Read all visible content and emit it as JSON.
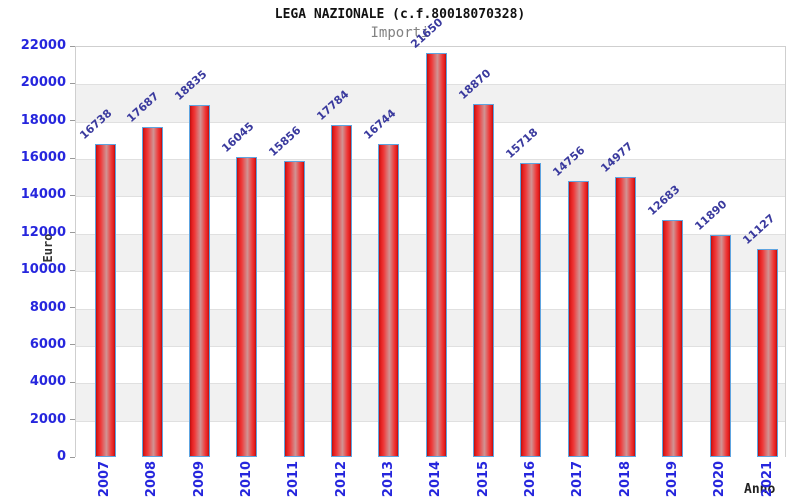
{
  "chart_data": {
    "type": "bar",
    "title": "LEGA NAZIONALE (c.f.80018070328)",
    "subtitle": "Importi",
    "xlabel": "Anno",
    "ylabel": "Euro",
    "categories": [
      "2007",
      "2008",
      "2009",
      "2010",
      "2011",
      "2012",
      "2013",
      "2014",
      "2015",
      "2016",
      "2017",
      "2018",
      "2019",
      "2020",
      "2021"
    ],
    "values": [
      16738,
      17687,
      18835,
      16045,
      15856,
      17784,
      16744,
      21650,
      18870,
      15718,
      14756,
      14977,
      12683,
      11890,
      11127
    ],
    "ylim": [
      0,
      22000
    ],
    "y_ticks": [
      0,
      2000,
      4000,
      6000,
      8000,
      10000,
      12000,
      14000,
      16000,
      18000,
      20000,
      22000
    ],
    "grid": "horizontal-bands",
    "legend": "none",
    "colors": {
      "bar_fill": "#e41f1f",
      "bar_highlight": "#d09494",
      "bar_border": "#5ea4e0",
      "axis_tick_label": "#2626dd",
      "value_label": "#3a3a9e",
      "band": "#f1f1f1",
      "plot_border": "#cfcfcf",
      "title": "#111111",
      "subtitle": "#828282",
      "axis_title": "#333333"
    }
  }
}
